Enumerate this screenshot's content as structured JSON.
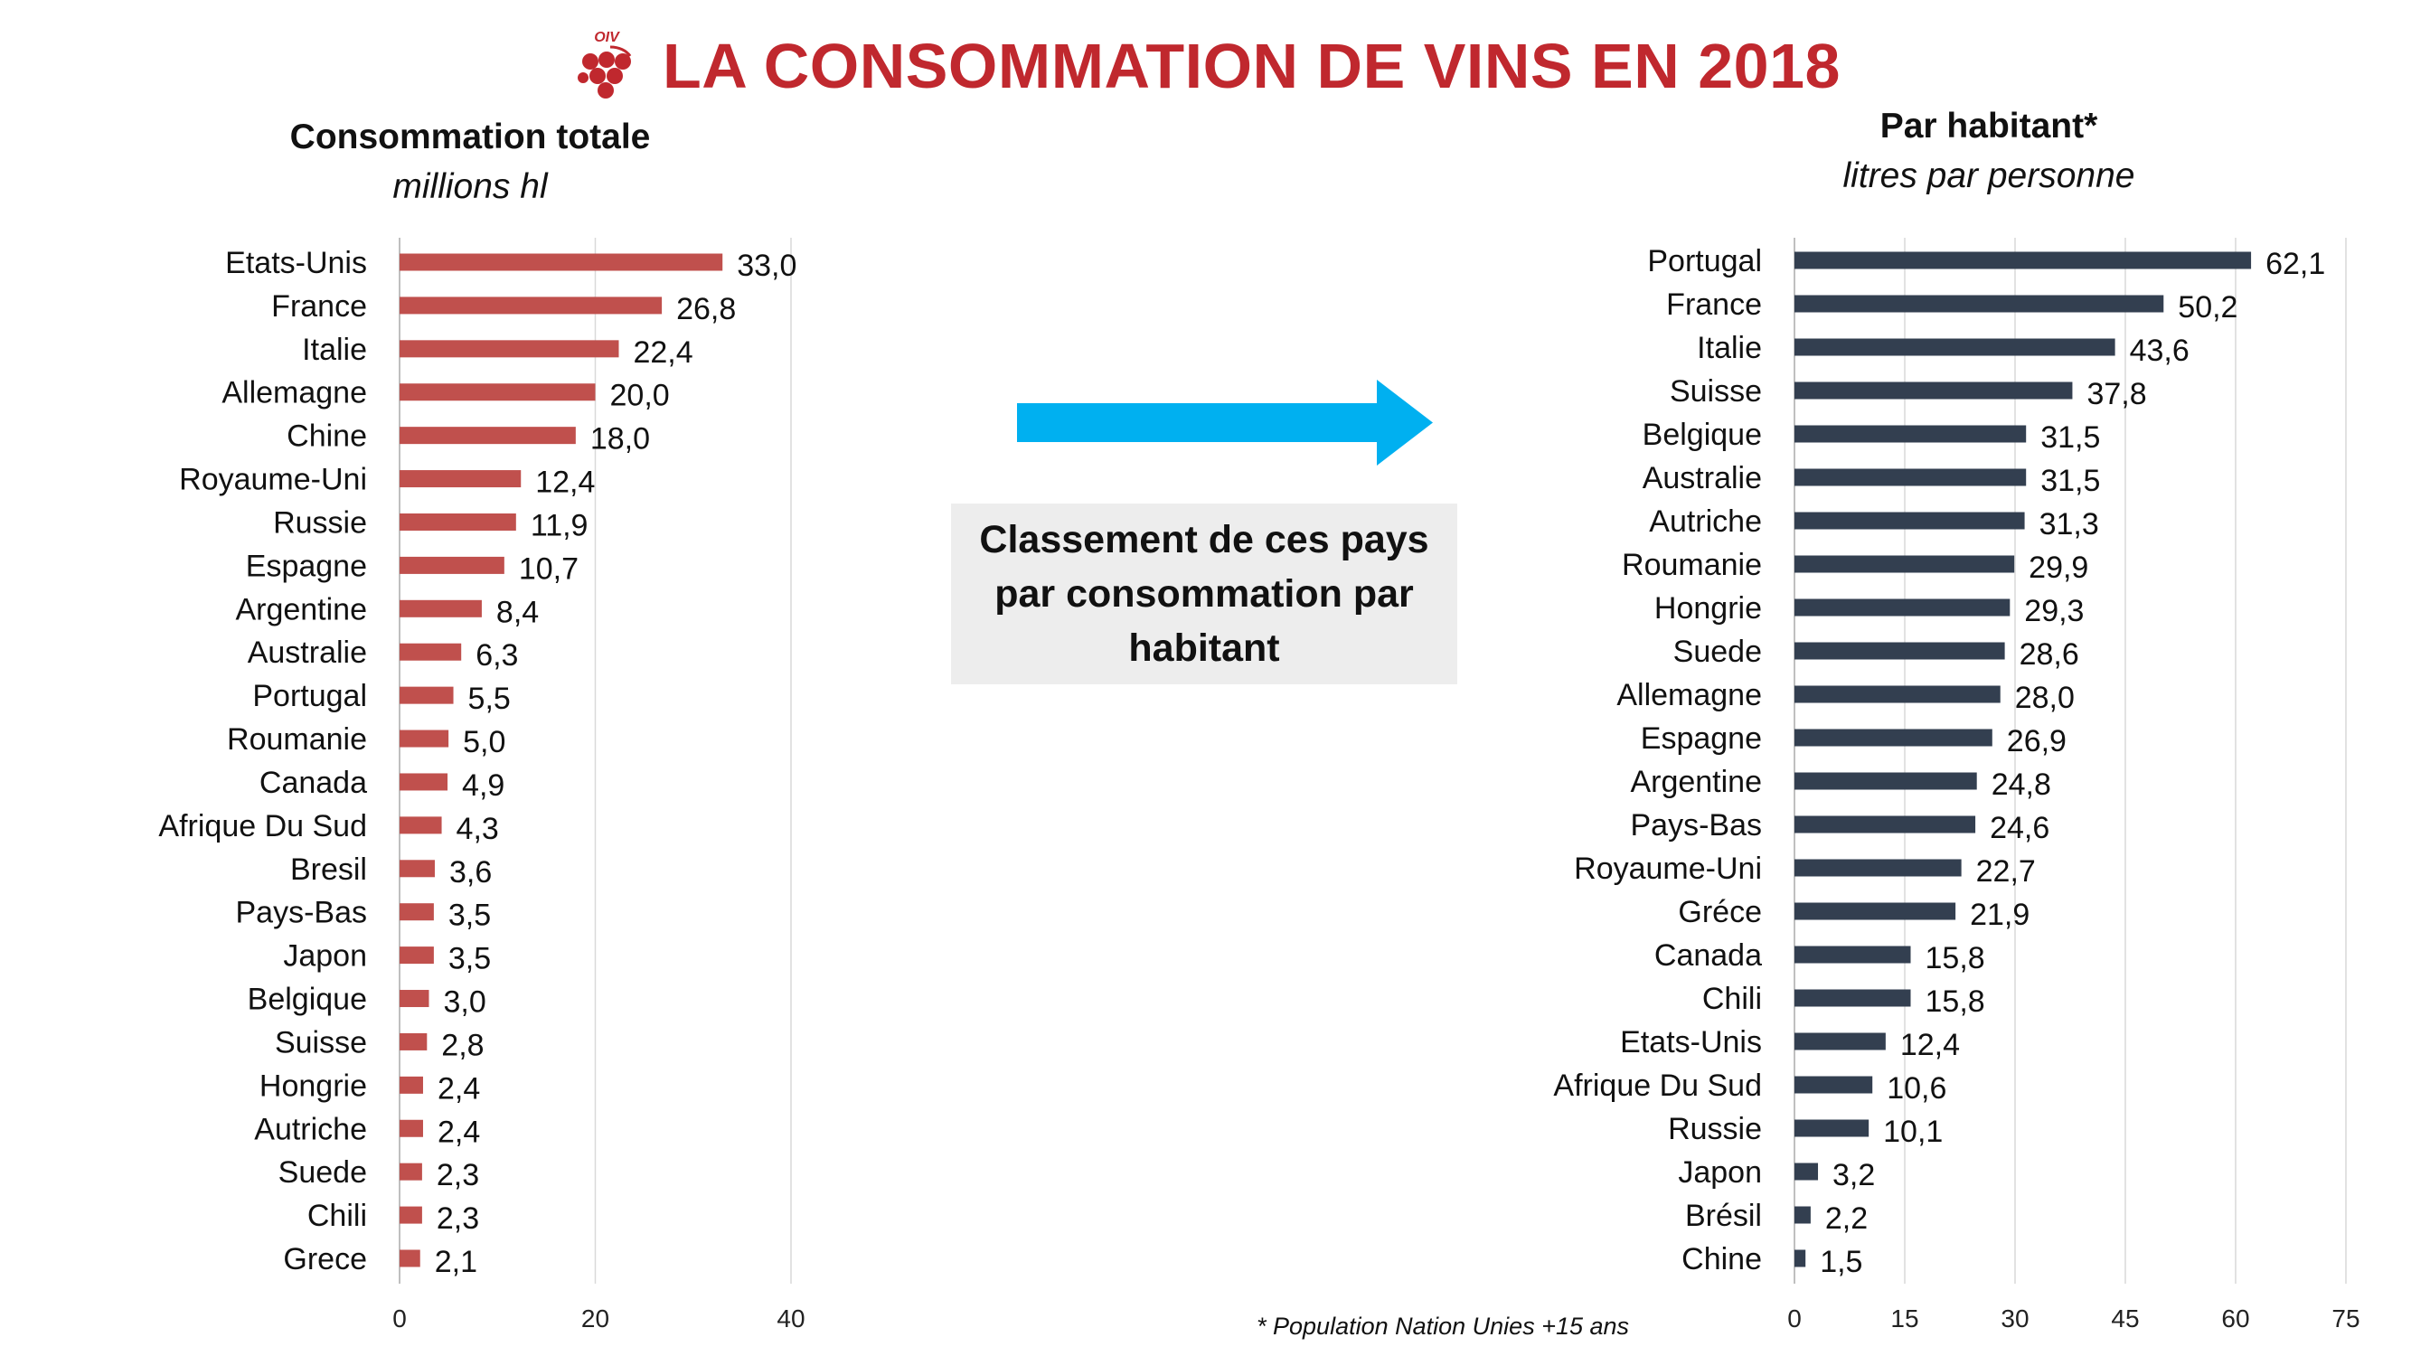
{
  "header": {
    "title": "LA CONSOMMATION DE VINS EN 2018",
    "logo_text": "OIV"
  },
  "left_panel": {
    "title": "Consommation totale",
    "subtitle": "millions hl"
  },
  "right_panel": {
    "title": "Par habitant*",
    "subtitle": "litres par personne"
  },
  "callout": {
    "text": "Classement de ces pays par consommation par habitant"
  },
  "footnote": "* Population Nation Unies +15 ans",
  "colors": {
    "title": "#c0282e",
    "left_bars": "#c0504d",
    "right_bars": "#333f50",
    "arrow": "#00b0f0",
    "callout_bg": "#ededed",
    "grid": "#d9d9d9"
  },
  "chart_data": [
    {
      "type": "bar",
      "orientation": "horizontal",
      "title": "Consommation totale",
      "subtitle": "millions hl",
      "categories": [
        "Etats-Unis",
        "France",
        "Italie",
        "Allemagne",
        "Chine",
        "Royaume-Uni",
        "Russie",
        "Espagne",
        "Argentine",
        "Australie",
        "Portugal",
        "Roumanie",
        "Canada",
        "Afrique Du Sud",
        "Bresil",
        "Pays-Bas",
        "Japon",
        "Belgique",
        "Suisse",
        "Hongrie",
        "Autriche",
        "Suede",
        "Chili",
        "Grece"
      ],
      "values": [
        33.0,
        26.8,
        22.4,
        20.0,
        18.0,
        12.4,
        11.9,
        10.7,
        8.4,
        6.3,
        5.5,
        5.0,
        4.9,
        4.3,
        3.6,
        3.5,
        3.5,
        3.0,
        2.8,
        2.4,
        2.4,
        2.3,
        2.3,
        2.1
      ],
      "labels": [
        "33,0",
        "26,8",
        "22,4",
        "20,0",
        "18,0",
        "12,4",
        "11,9",
        "10,7",
        "8,4",
        "6,3",
        "5,5",
        "5,0",
        "4,9",
        "4,3",
        "3,6",
        "3,5",
        "3,5",
        "3,0",
        "2,8",
        "2,4",
        "2,4",
        "2,3",
        "2,3",
        "2,1"
      ],
      "xlim": [
        0,
        40
      ],
      "xticks": [
        "0",
        "20",
        "40"
      ],
      "grid": true
    },
    {
      "type": "bar",
      "orientation": "horizontal",
      "title": "Par habitant*",
      "subtitle": "litres par personne",
      "categories": [
        "Portugal",
        "France",
        "Italie",
        "Suisse",
        "Belgique",
        "Australie",
        "Autriche",
        "Roumanie",
        "Hongrie",
        "Suede",
        "Allemagne",
        "Espagne",
        "Argentine",
        "Pays-Bas",
        "Royaume-Uni",
        "Gréce",
        "Canada",
        "Chili",
        "Etats-Unis",
        "Afrique Du Sud",
        "Russie",
        "Japon",
        "Brésil",
        "Chine"
      ],
      "values": [
        62.1,
        50.2,
        43.6,
        37.8,
        31.5,
        31.5,
        31.3,
        29.9,
        29.3,
        28.6,
        28.0,
        26.9,
        24.8,
        24.6,
        22.7,
        21.9,
        15.8,
        15.8,
        12.4,
        10.6,
        10.1,
        3.2,
        2.2,
        1.5
      ],
      "labels": [
        "62,1",
        "50,2",
        "43,6",
        "37,8",
        "31,5",
        "31,5",
        "31,3",
        "29,9",
        "29,3",
        "28,6",
        "28,0",
        "26,9",
        "24,8",
        "24,6",
        "22,7",
        "21,9",
        "15,8",
        "15,8",
        "12,4",
        "10,6",
        "10,1",
        "3,2",
        "2,2",
        "1,5"
      ],
      "xlim": [
        0,
        75
      ],
      "xticks": [
        "0",
        "15",
        "30",
        "45",
        "60",
        "75"
      ],
      "grid": true
    }
  ]
}
